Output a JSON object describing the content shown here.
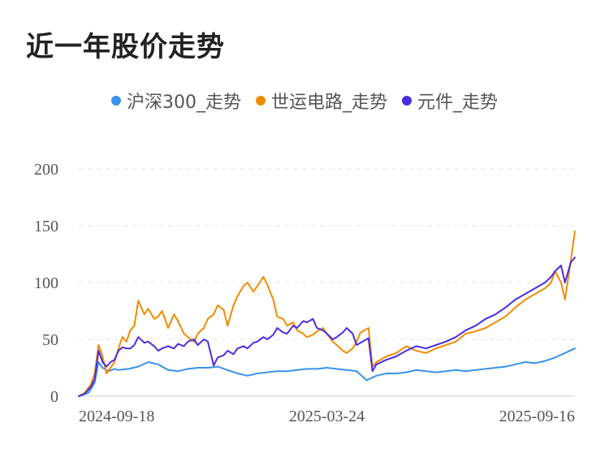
{
  "title": "近一年股价走势",
  "chart_data": {
    "type": "line",
    "title": "近一年股价走势",
    "xlabel": "",
    "ylabel": "",
    "ylim": [
      0,
      200
    ],
    "y_ticks": [
      0,
      50,
      100,
      150,
      200
    ],
    "x_tick_labels": [
      "2024-09-18",
      "2025-03-24",
      "2025-09-16"
    ],
    "grid": "horizontal dashed",
    "legend_position": "top",
    "x_index_range": [
      0,
      250
    ],
    "series": [
      {
        "name": "沪深300_走势",
        "color": "#3a92ea",
        "x": [
          0,
          5,
          8,
          10,
          12,
          15,
          18,
          20,
          25,
          30,
          35,
          40,
          45,
          50,
          55,
          60,
          65,
          70,
          75,
          80,
          85,
          90,
          95,
          100,
          105,
          110,
          115,
          120,
          125,
          130,
          135,
          140,
          145,
          150,
          155,
          160,
          165,
          170,
          175,
          180,
          185,
          190,
          195,
          200,
          205,
          210,
          215,
          220,
          225,
          230,
          235,
          240,
          245,
          250
        ],
        "values": [
          0,
          3,
          12,
          30,
          25,
          22,
          24,
          23,
          24,
          26,
          30,
          28,
          23,
          22,
          24,
          25,
          25,
          26,
          23,
          20,
          18,
          20,
          21,
          22,
          22,
          23,
          24,
          24,
          25,
          24,
          23,
          22,
          14,
          18,
          20,
          20,
          21,
          23,
          22,
          21,
          22,
          23,
          22,
          23,
          24,
          25,
          26,
          28,
          30,
          29,
          31,
          34,
          38,
          42
        ]
      },
      {
        "name": "世运电路_走势",
        "color": "#f08c00",
        "x": [
          0,
          3,
          6,
          8,
          10,
          12,
          14,
          16,
          18,
          20,
          22,
          24,
          26,
          28,
          30,
          33,
          35,
          38,
          40,
          42,
          45,
          48,
          50,
          53,
          55,
          58,
          60,
          63,
          65,
          68,
          70,
          73,
          75,
          78,
          80,
          83,
          85,
          88,
          90,
          93,
          95,
          98,
          100,
          103,
          105,
          108,
          110,
          113,
          115,
          118,
          120,
          123,
          125,
          128,
          130,
          133,
          135,
          138,
          140,
          142,
          144,
          146,
          148,
          150,
          155,
          160,
          165,
          170,
          175,
          180,
          185,
          190,
          195,
          200,
          205,
          210,
          215,
          220,
          225,
          230,
          235,
          238,
          240,
          243,
          245,
          248,
          250
        ],
        "values": [
          0,
          3,
          10,
          20,
          45,
          35,
          20,
          25,
          30,
          42,
          52,
          48,
          58,
          62,
          84,
          72,
          77,
          68,
          70,
          75,
          60,
          72,
          66,
          55,
          52,
          48,
          55,
          60,
          68,
          72,
          80,
          76,
          62,
          80,
          88,
          97,
          100,
          92,
          97,
          105,
          98,
          85,
          70,
          68,
          62,
          65,
          58,
          55,
          52,
          54,
          57,
          60,
          55,
          48,
          45,
          40,
          38,
          42,
          48,
          56,
          58,
          60,
          26,
          30,
          35,
          38,
          44,
          40,
          38,
          42,
          45,
          48,
          55,
          57,
          60,
          65,
          70,
          78,
          85,
          90,
          95,
          100,
          110,
          100,
          85,
          120,
          145
        ]
      },
      {
        "name": "元件_走势",
        "color": "#4b2de0",
        "x": [
          0,
          3,
          6,
          8,
          10,
          12,
          14,
          16,
          18,
          20,
          22,
          24,
          26,
          28,
          30,
          33,
          35,
          38,
          40,
          42,
          45,
          48,
          50,
          53,
          55,
          58,
          60,
          63,
          65,
          68,
          70,
          73,
          75,
          78,
          80,
          83,
          85,
          88,
          90,
          93,
          95,
          98,
          100,
          103,
          105,
          108,
          110,
          113,
          115,
          118,
          120,
          123,
          125,
          128,
          130,
          133,
          135,
          138,
          140,
          142,
          144,
          146,
          148,
          150,
          155,
          160,
          165,
          170,
          175,
          180,
          185,
          190,
          195,
          200,
          205,
          210,
          215,
          220,
          225,
          230,
          235,
          238,
          240,
          243,
          245,
          248,
          250
        ],
        "values": [
          0,
          2,
          8,
          15,
          40,
          30,
          26,
          30,
          32,
          40,
          43,
          42,
          42,
          45,
          52,
          47,
          48,
          44,
          40,
          42,
          44,
          42,
          46,
          44,
          48,
          50,
          45,
          50,
          48,
          27,
          34,
          36,
          40,
          37,
          42,
          44,
          42,
          47,
          48,
          52,
          50,
          54,
          60,
          56,
          55,
          62,
          60,
          66,
          65,
          68,
          60,
          58,
          55,
          50,
          52,
          56,
          60,
          55,
          45,
          47,
          49,
          51,
          22,
          28,
          32,
          35,
          40,
          44,
          42,
          45,
          48,
          52,
          58,
          62,
          68,
          72,
          78,
          85,
          90,
          95,
          100,
          105,
          110,
          115,
          100,
          118,
          122
        ]
      }
    ]
  }
}
